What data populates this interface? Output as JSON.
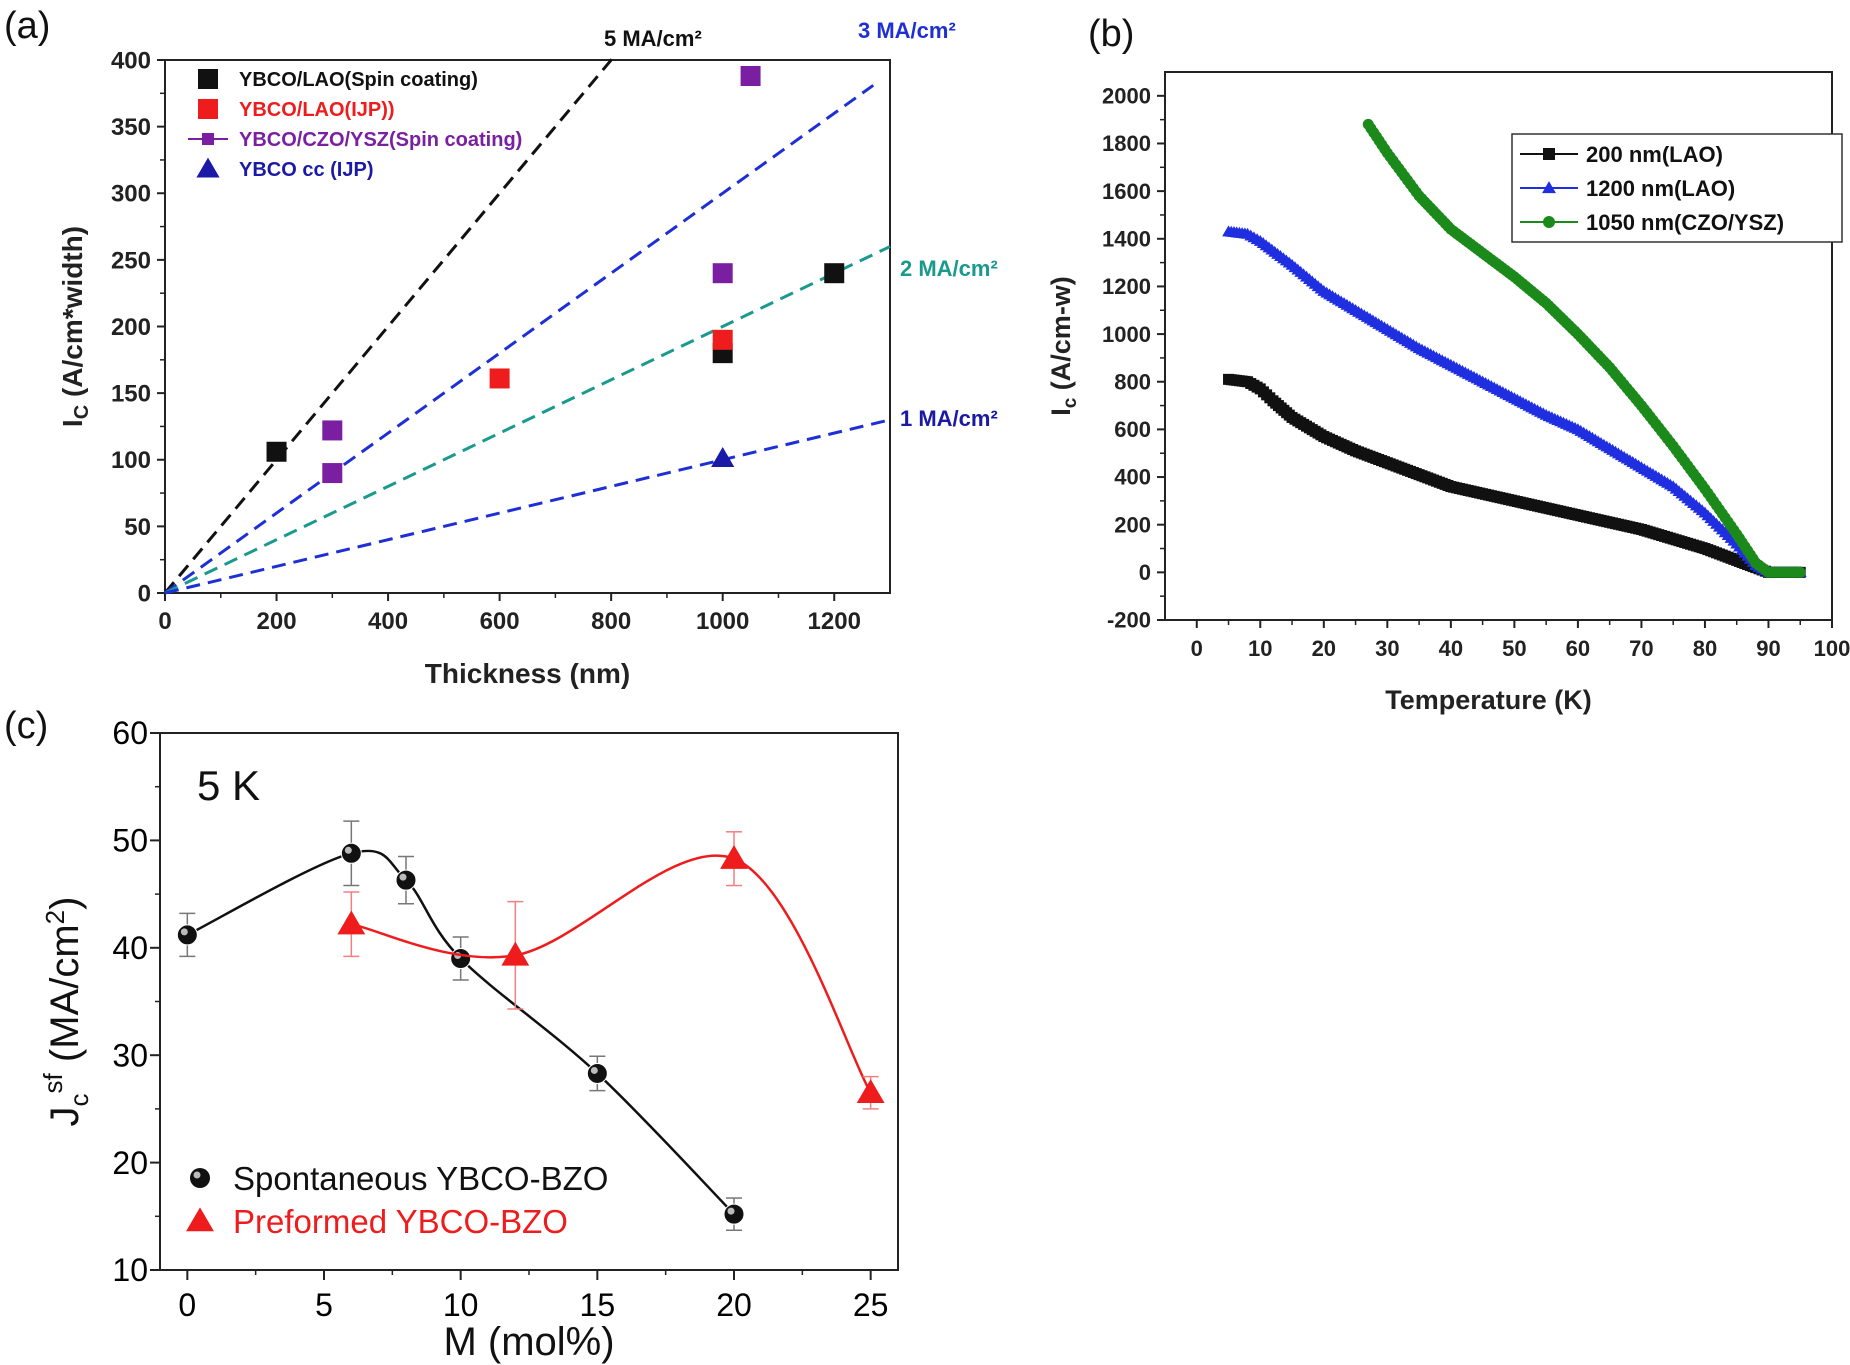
{
  "panel_labels": [
    "(a)",
    "(b)",
    "(c)"
  ],
  "chart_data": [
    {
      "type": "scatter",
      "panel": "(a)",
      "xlabel": "Thickness (nm)",
      "ylabel": "I",
      "ylabel_sub": "C",
      "ylabel_rest": " (A/cm*width)",
      "xlim": [
        0,
        1300
      ],
      "ylim": [
        0,
        400
      ],
      "xticks": [
        0,
        200,
        400,
        600,
        800,
        1000,
        1200
      ],
      "yticks": [
        0,
        50,
        100,
        150,
        200,
        250,
        300,
        350,
        400
      ],
      "grid": false,
      "legend_position": "top-left",
      "series": [
        {
          "name": "YBCO/LAO(Spin coating)",
          "color": "#111111",
          "marker": "square",
          "points": [
            [
              200,
              106
            ],
            [
              1000,
              180
            ],
            [
              1200,
              240
            ]
          ]
        },
        {
          "name": "YBCO/LAO(IJP))",
          "color": "#ee1c1c",
          "marker": "square",
          "points": [
            [
              600,
              161
            ],
            [
              1000,
              190
            ]
          ]
        },
        {
          "name": "YBCO/CZO/YSZ(Spin coating)",
          "color": "#7b1fa2",
          "marker": "square",
          "points": [
            [
              300,
              122
            ],
            [
              300,
              90
            ],
            [
              1000,
              240
            ],
            [
              1050,
              388
            ]
          ]
        },
        {
          "name": "YBCO cc (IJP)",
          "color": "#1a1aa6",
          "marker": "triangle",
          "points": [
            [
              1000,
              101
            ]
          ]
        }
      ],
      "reference_lines": [
        {
          "label": "5 MA/cm²",
          "slope": 0.5,
          "x_end": 840,
          "color": "#111111"
        },
        {
          "label": "3 MA/cm²",
          "slope": 0.3,
          "x_end": 1270,
          "color": "#1f2fd6"
        },
        {
          "label": "2 MA/cm²",
          "slope": 0.2,
          "x_end": 1300,
          "color": "#1a9a8e"
        },
        {
          "label": "1 MA/cm²",
          "slope": 0.1,
          "x_end": 1300,
          "color": "#1f2fd6"
        }
      ]
    },
    {
      "type": "line",
      "panel": "(b)",
      "xlabel": "Temperature (K)",
      "ylabel": "I",
      "ylabel_sub": "c",
      "ylabel_rest": " (A/cm-w)",
      "xlim": [
        -5,
        100
      ],
      "ylim": [
        -200,
        2100
      ],
      "xticks": [
        0,
        10,
        20,
        30,
        40,
        50,
        60,
        70,
        80,
        90,
        100
      ],
      "yticks": [
        -200,
        0,
        200,
        400,
        600,
        800,
        1000,
        1200,
        1400,
        1600,
        1800,
        2000
      ],
      "grid": false,
      "legend_position": "top-right",
      "series": [
        {
          "name": "200 nm(LAO)",
          "color": "#111111",
          "marker": "square",
          "points": [
            [
              5,
              810
            ],
            [
              8,
              800
            ],
            [
              10,
              770
            ],
            [
              12,
              720
            ],
            [
              15,
              650
            ],
            [
              20,
              570
            ],
            [
              25,
              510
            ],
            [
              30,
              460
            ],
            [
              35,
              410
            ],
            [
              40,
              360
            ],
            [
              45,
              330
            ],
            [
              50,
              300
            ],
            [
              55,
              270
            ],
            [
              60,
              240
            ],
            [
              65,
              210
            ],
            [
              70,
              180
            ],
            [
              75,
              140
            ],
            [
              80,
              100
            ],
            [
              85,
              50
            ],
            [
              88,
              20
            ],
            [
              90,
              0
            ],
            [
              95,
              0
            ]
          ]
        },
        {
          "name": "1200 nm(LAO)",
          "color": "#1f2fe0",
          "marker": "triangle",
          "points": [
            [
              5,
              1430
            ],
            [
              8,
              1420
            ],
            [
              10,
              1390
            ],
            [
              15,
              1290
            ],
            [
              20,
              1180
            ],
            [
              25,
              1100
            ],
            [
              30,
              1020
            ],
            [
              35,
              940
            ],
            [
              40,
              870
            ],
            [
              45,
              800
            ],
            [
              50,
              730
            ],
            [
              55,
              660
            ],
            [
              60,
              600
            ],
            [
              65,
              520
            ],
            [
              70,
              440
            ],
            [
              75,
              360
            ],
            [
              80,
              250
            ],
            [
              85,
              120
            ],
            [
              88,
              30
            ],
            [
              90,
              0
            ],
            [
              95,
              0
            ]
          ]
        },
        {
          "name": "1050 nm(CZO/YSZ)",
          "color": "#1b8a1b",
          "marker": "circle",
          "points": [
            [
              27,
              1880
            ],
            [
              30,
              1760
            ],
            [
              35,
              1580
            ],
            [
              40,
              1440
            ],
            [
              45,
              1340
            ],
            [
              50,
              1240
            ],
            [
              55,
              1130
            ],
            [
              60,
              1000
            ],
            [
              65,
              860
            ],
            [
              70,
              700
            ],
            [
              75,
              530
            ],
            [
              80,
              350
            ],
            [
              85,
              160
            ],
            [
              88,
              40
            ],
            [
              90,
              0
            ],
            [
              95,
              0
            ]
          ]
        }
      ]
    },
    {
      "type": "line",
      "panel": "(c)",
      "annotation": "5 K",
      "xlabel": "M (mol%)",
      "ylabel": "J",
      "ylabel_sub": "c",
      "ylabel_sup": "sf",
      "ylabel_rest": " (MA/cm",
      "ylabel_unit_sup": "2",
      "ylabel_close": ")",
      "xlim": [
        -1,
        26
      ],
      "ylim": [
        10,
        60
      ],
      "xticks": [
        0,
        5,
        10,
        15,
        20,
        25
      ],
      "yticks": [
        10,
        20,
        30,
        40,
        50,
        60
      ],
      "grid": false,
      "legend_position": "bottom-left",
      "series": [
        {
          "name": "Spontaneous YBCO-BZO",
          "color": "#111111",
          "marker": "circle",
          "x": [
            0,
            6,
            8,
            10,
            15,
            20
          ],
          "y": [
            41.2,
            48.8,
            46.3,
            39.0,
            28.3,
            15.2
          ],
          "err": [
            2.0,
            3.0,
            2.2,
            2.0,
            1.6,
            1.5
          ]
        },
        {
          "name": "Preformed YBCO-BZO",
          "color": "#ee1c1c",
          "marker": "triangle",
          "x": [
            6,
            12,
            20,
            25
          ],
          "y": [
            42.2,
            39.3,
            48.3,
            26.5
          ],
          "err": [
            3.0,
            5.0,
            2.5,
            1.5
          ]
        }
      ]
    }
  ]
}
